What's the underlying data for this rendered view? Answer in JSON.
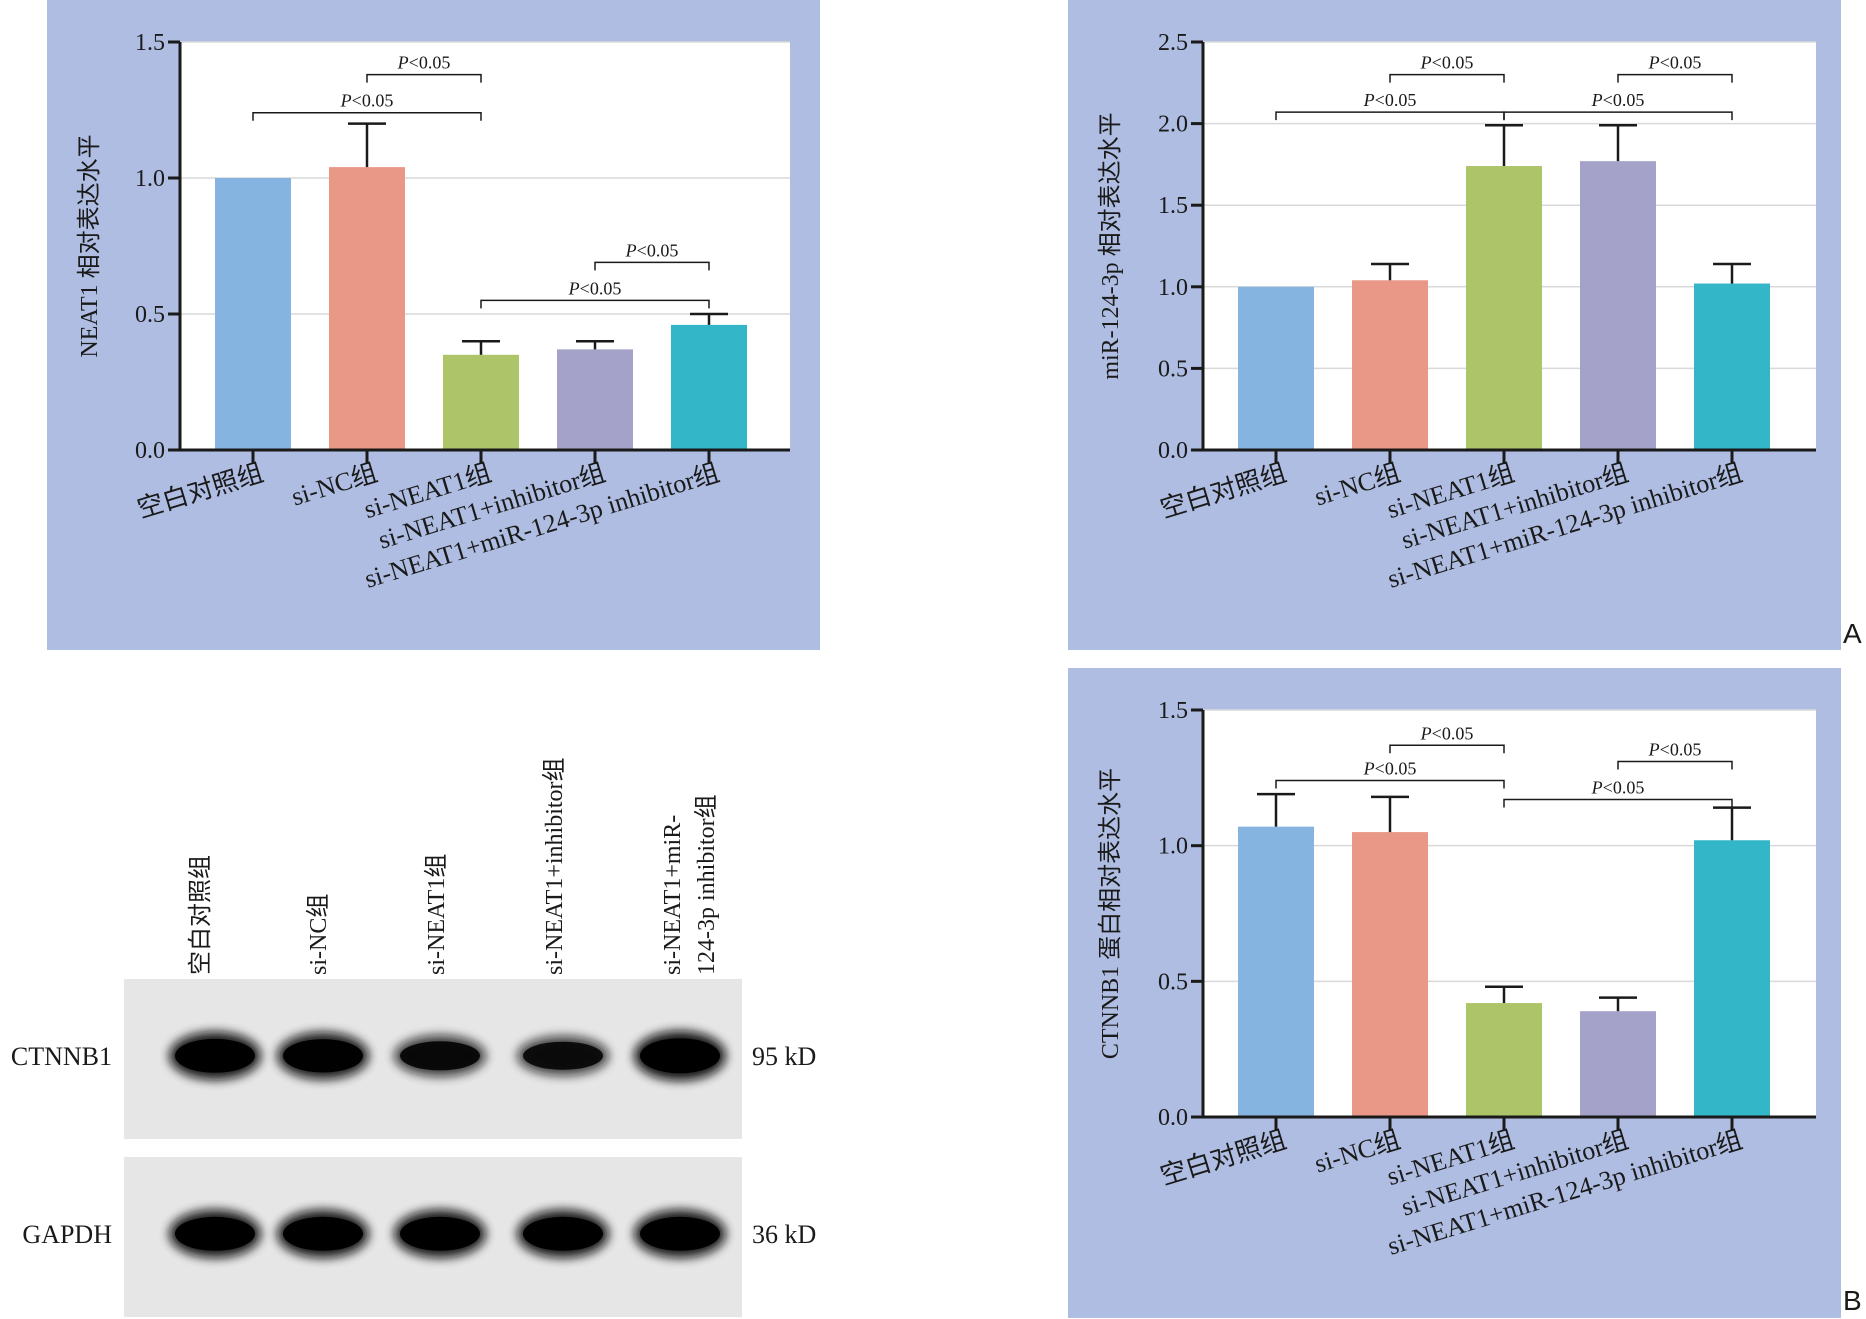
{
  "colors": {
    "panel_bg": "#aebde1",
    "plot_bg": "#ffffff",
    "grid": "#d9d9d9",
    "bars": [
      "#86b4e0",
      "#e99787",
      "#adc468",
      "#a5a2ca",
      "#33b7c8"
    ]
  },
  "categories": [
    "空白对照组",
    "si-NC组",
    "si-NEAT1组",
    "si-NEAT1+inhibitor组",
    "si-NEAT1+miR-124-3p inhibitor组"
  ],
  "chart_data": [
    {
      "type": "bar",
      "categories": [
        "空白对照组",
        "si-NC组",
        "si-NEAT1组",
        "si-NEAT1+inhibitor组",
        "si-NEAT1+miR-124-3p inhibitor组"
      ],
      "values": [
        1.0,
        1.04,
        0.35,
        0.37,
        0.46
      ],
      "errors": [
        0.0,
        0.16,
        0.05,
        0.03,
        0.04
      ],
      "ylabel": "NEAT1 相对表达水平",
      "ylim": [
        0,
        1.5
      ],
      "yticks": [
        "0.0",
        "0.5",
        "1.0",
        "1.5"
      ],
      "grid": true,
      "significance": [
        {
          "from": 0,
          "to": 2,
          "label": "P<0.05",
          "y": 1.24
        },
        {
          "from": 1,
          "to": 2,
          "label": "P<0.05",
          "y": 1.38
        },
        {
          "from": 2,
          "to": 4,
          "label": "P<0.05",
          "y": 0.55
        },
        {
          "from": 3,
          "to": 4,
          "label": "P<0.05",
          "y": 0.69
        }
      ]
    },
    {
      "type": "bar",
      "categories": [
        "空白对照组",
        "si-NC组",
        "si-NEAT1组",
        "si-NEAT1+inhibitor组",
        "si-NEAT1+miR-124-3p inhibitor组"
      ],
      "values": [
        1.0,
        1.04,
        1.74,
        1.77,
        1.02
      ],
      "errors": [
        0.0,
        0.1,
        0.25,
        0.22,
        0.12
      ],
      "ylabel": "miR-124-3p 相对表达水平",
      "ylim": [
        0,
        2.5
      ],
      "yticks": [
        "0.0",
        "0.5",
        "1.0",
        "1.5",
        "2.0",
        "2.5"
      ],
      "grid": true,
      "significance": [
        {
          "from": 0,
          "to": 2,
          "label": "P<0.05",
          "y": 2.07
        },
        {
          "from": 1,
          "to": 2,
          "label": "P<0.05",
          "y": 2.3
        },
        {
          "from": 2,
          "to": 4,
          "label": "P<0.05",
          "y": 2.07
        },
        {
          "from": 3,
          "to": 4,
          "label": "P<0.05",
          "y": 2.3
        }
      ]
    },
    {
      "type": "bar",
      "categories": [
        "空白对照组",
        "si-NC组",
        "si-NEAT1组",
        "si-NEAT1+inhibitor组",
        "si-NEAT1+miR-124-3p inhibitor组"
      ],
      "values": [
        1.07,
        1.05,
        0.42,
        0.39,
        1.02
      ],
      "errors": [
        0.12,
        0.13,
        0.06,
        0.05,
        0.12
      ],
      "ylabel": "CTNNB1 蛋白相对表达水平",
      "ylim": [
        0,
        1.5
      ],
      "yticks": [
        "0.0",
        "0.5",
        "1.0",
        "1.5"
      ],
      "grid": true,
      "significance": [
        {
          "from": 0,
          "to": 2,
          "label": "P<0.05",
          "y": 1.24
        },
        {
          "from": 1,
          "to": 2,
          "label": "P<0.05",
          "y": 1.37
        },
        {
          "from": 2,
          "to": 4,
          "label": "P<0.05",
          "y": 1.17
        },
        {
          "from": 3,
          "to": 4,
          "label": "P<0.05",
          "y": 1.31
        }
      ]
    }
  ],
  "blot": {
    "lanes": [
      "空白对照组",
      "si-NC组",
      "si-NEAT1组",
      "si-NEAT1+inhibitor组",
      "si-NEAT1+miR-",
      "124-3p inhibitor组"
    ],
    "rows": [
      {
        "label": "CTNNB1",
        "size": "95 kD",
        "intensity": [
          0.95,
          0.92,
          0.7,
          0.65,
          1.0
        ]
      },
      {
        "label": "GAPDH",
        "size": "36 kD",
        "intensity": [
          0.95,
          0.95,
          0.95,
          0.95,
          0.95
        ]
      }
    ]
  },
  "panel_labels": {
    "a": "A",
    "b": "B"
  }
}
